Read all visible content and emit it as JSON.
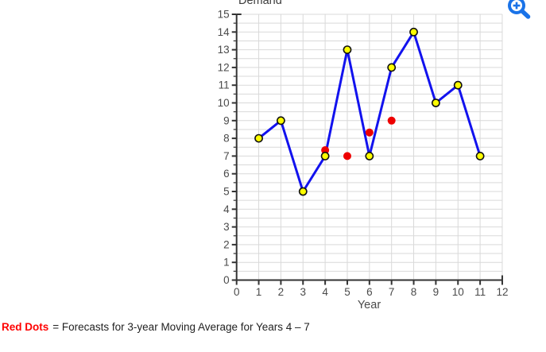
{
  "chart": {
    "title": "Demand",
    "xlabel": "Year"
  },
  "chart_data": {
    "type": "line",
    "title": "Demand",
    "xlabel": "Year",
    "ylabel": "",
    "xlim": [
      0,
      12
    ],
    "ylim": [
      0,
      15
    ],
    "x_tick_step": 1,
    "y_tick_step": 1,
    "y_minor_step": 0.5,
    "grid": true,
    "legend_position": "none",
    "series": [
      {
        "name": "Demand",
        "type": "line-markers",
        "x": [
          1,
          2,
          3,
          4,
          5,
          6,
          7,
          8,
          9,
          10,
          11
        ],
        "values": [
          8,
          9,
          5,
          7,
          13,
          7,
          12,
          14,
          10,
          11,
          7
        ],
        "line_color": "#1212ee",
        "marker_fill": "#ffff00",
        "marker_stroke": "#111111"
      },
      {
        "name": "3-year Moving Average Forecast",
        "type": "scatter",
        "x": [
          4,
          5,
          6,
          7
        ],
        "values": [
          7.33,
          7,
          8.33,
          9
        ],
        "marker_fill": "#ee0000"
      }
    ],
    "colors": {
      "grid": "#d9d9d9",
      "axis": "#333333",
      "tick_label": "#4a4a4a"
    }
  },
  "icons": {
    "zoom_in": "magnifier-plus-icon",
    "zoom_color": "#1a73e8"
  },
  "caption": {
    "key": "Red Dots",
    "key_color": "#ff0000",
    "rest": "=  Forecasts for 3-year Moving Average for Years 4 – 7"
  }
}
